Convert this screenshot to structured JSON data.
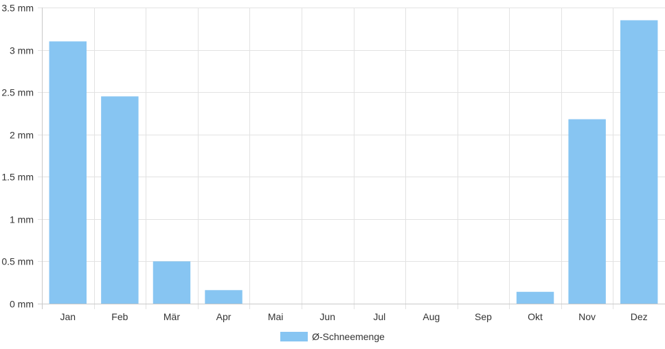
{
  "chart_data": {
    "type": "bar",
    "categories": [
      "Jan",
      "Feb",
      "Mär",
      "Apr",
      "Mai",
      "Jun",
      "Jul",
      "Aug",
      "Sep",
      "Okt",
      "Nov",
      "Dez"
    ],
    "series": [
      {
        "name": "Ø-Schneemenge",
        "values": [
          3.1,
          2.45,
          0.5,
          0.16,
          0,
          0,
          0,
          0,
          0,
          0.14,
          2.18,
          3.35
        ],
        "color": "#87c5f2"
      }
    ],
    "ylim": [
      0,
      3.5
    ],
    "yticks": [
      0,
      0.5,
      1,
      1.5,
      2,
      2.5,
      3,
      3.5
    ],
    "ytick_labels": [
      "0 mm",
      "0.5 mm",
      "1 mm",
      "1.5 mm",
      "2 mm",
      "2.5 mm",
      "3 mm",
      "3.5 mm"
    ],
    "unit": "mm",
    "grid": true,
    "legend_position": "bottom-center"
  }
}
